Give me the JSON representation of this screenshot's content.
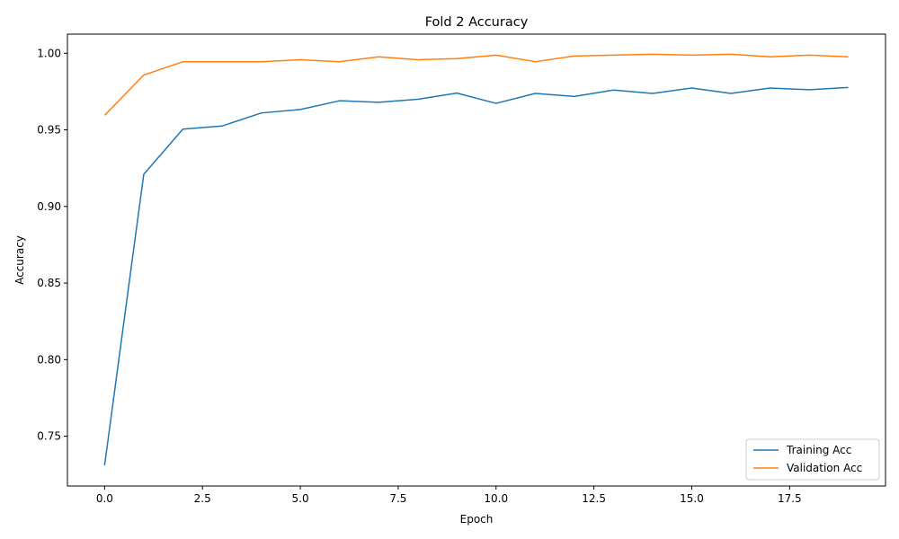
{
  "chart_data": {
    "type": "line",
    "title": "Fold 2 Accuracy",
    "xlabel": "Epoch",
    "ylabel": "Accuracy",
    "xlim": [
      -0.95,
      19.95
    ],
    "ylim": [
      0.7175,
      1.0125
    ],
    "xticks": [
      0.0,
      2.5,
      5.0,
      7.5,
      10.0,
      12.5,
      15.0,
      17.5
    ],
    "xtick_labels": [
      "0.0",
      "2.5",
      "5.0",
      "7.5",
      "10.0",
      "12.5",
      "15.0",
      "17.5"
    ],
    "yticks": [
      0.75,
      0.8,
      0.85,
      0.9,
      0.95,
      1.0
    ],
    "ytick_labels": [
      "0.75",
      "0.80",
      "0.85",
      "0.90",
      "0.95",
      "1.00"
    ],
    "grid": false,
    "legend_position": "lower-right",
    "x": [
      0,
      1,
      2,
      3,
      4,
      5,
      6,
      7,
      8,
      9,
      10,
      11,
      12,
      13,
      14,
      15,
      16,
      17,
      18,
      19
    ],
    "series": [
      {
        "name": "Training Acc",
        "color": "#1f77b4",
        "values": [
          0.731,
          0.921,
          0.9505,
          0.9525,
          0.961,
          0.9633,
          0.969,
          0.968,
          0.97,
          0.974,
          0.9673,
          0.9738,
          0.9718,
          0.976,
          0.9738,
          0.9773,
          0.9738,
          0.9773,
          0.9762,
          0.9777
        ]
      },
      {
        "name": "Validation Acc",
        "color": "#ff7f0e",
        "values": [
          0.9595,
          0.9858,
          0.9945,
          0.9945,
          0.9945,
          0.9958,
          0.9945,
          0.9977,
          0.9958,
          0.9965,
          0.9988,
          0.9945,
          0.9982,
          0.9988,
          0.9994,
          0.9988,
          0.9994,
          0.9977,
          0.9988,
          0.9977
        ]
      }
    ]
  }
}
